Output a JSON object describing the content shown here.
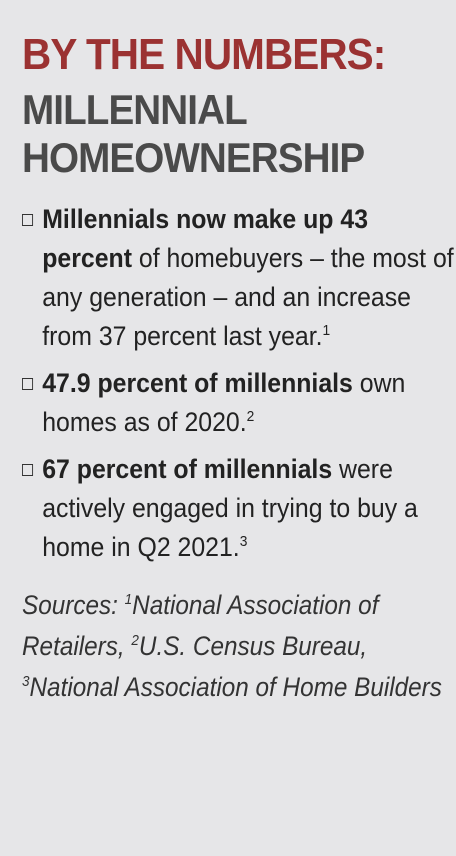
{
  "title": {
    "line1": "BY THE NUMBERS:",
    "line2": "MILLENNIAL\nHOMEOWNERSHIP"
  },
  "stats": [
    {
      "bold": "Millennials now make up 43 percent",
      "text": " of homebuyers – the most of any generation – and an increase from 37 percent last year.",
      "ref": "1"
    },
    {
      "bold": "47.9 percent of millennials",
      "text": " own homes as of 2020.",
      "ref": "2"
    },
    {
      "bold": "67 percent of millennials",
      "text": " were actively engaged in trying to buy a home in Q2 2021.",
      "ref": "3"
    }
  ],
  "sources": {
    "prefix": "Sources: ",
    "items": [
      {
        "ref": "1",
        "name": "National Association of Retailers"
      },
      {
        "ref": "2",
        "name": "U.S. Census Bureau"
      },
      {
        "ref": "3",
        "name": "National Association of Home Builders"
      }
    ]
  }
}
